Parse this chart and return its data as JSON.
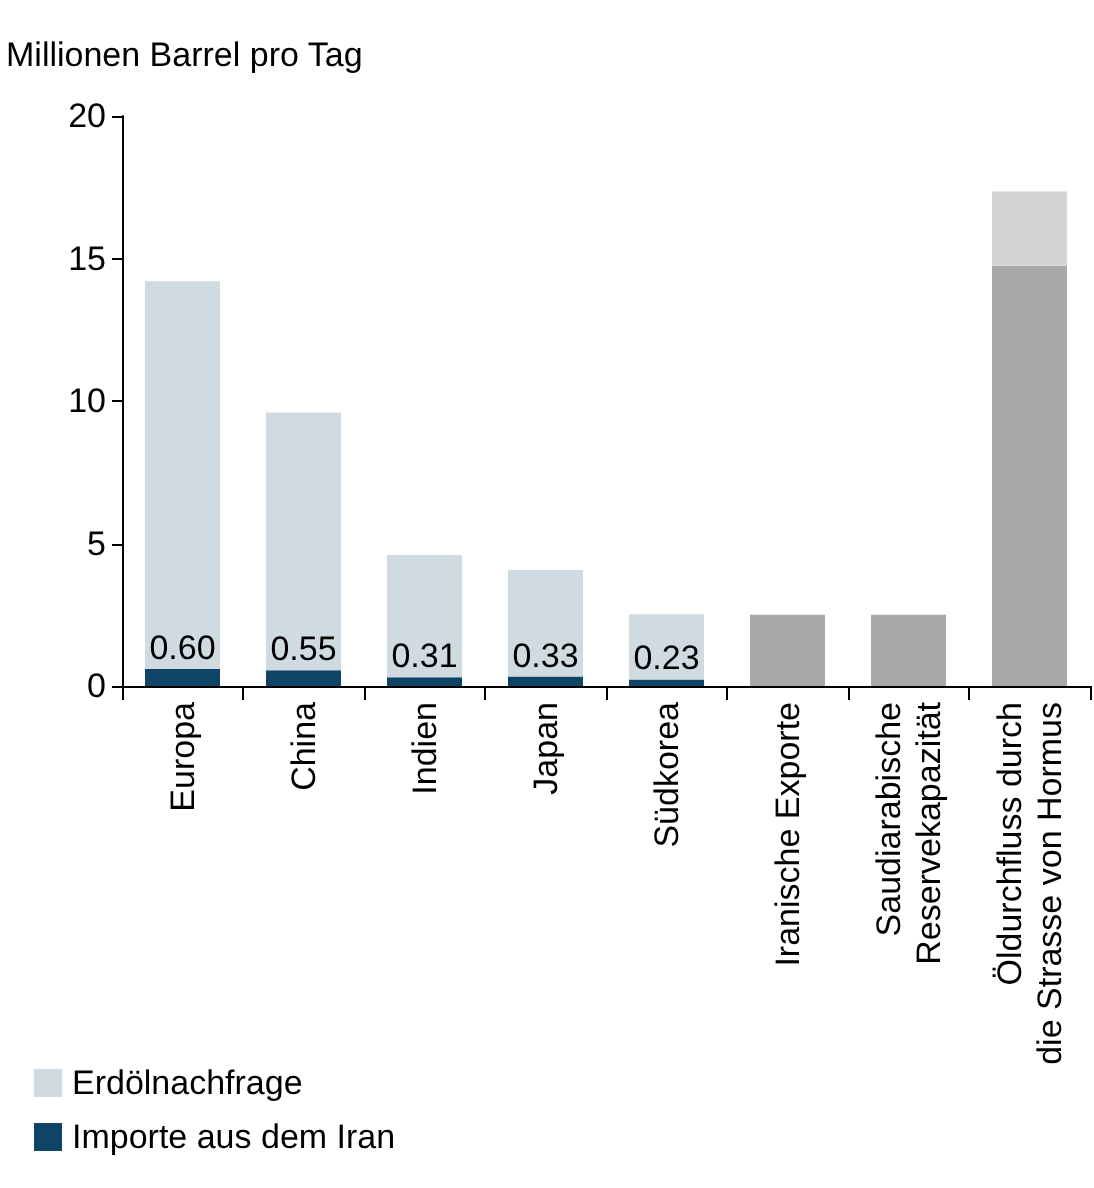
{
  "chart_data": {
    "type": "bar",
    "ylabel": "Millionen Barrel pro Tag",
    "categories": [
      "Europa",
      "China",
      "Indien",
      "Japan",
      "Südkorea",
      "Iranische Exporte",
      "Saudiarabische\nReservekapazität",
      "Öldurchfluss durch\ndie Strasse von Hormus"
    ],
    "stacked": true,
    "series": [
      {
        "name": "Importe aus dem Iran",
        "color": "#0f4466",
        "values": [
          0.6,
          0.55,
          0.31,
          0.33,
          0.23,
          null,
          null,
          null
        ],
        "value_labels": [
          "0.60",
          "0.55",
          "0.31",
          "0.33",
          "0.23",
          null,
          null,
          null
        ]
      },
      {
        "name": "Erdölnachfrage",
        "color": "#d0dbe1",
        "values": [
          13.6,
          9.05,
          4.29,
          3.74,
          2.29,
          null,
          null,
          null
        ]
      },
      {
        "color": "#a8a8a8",
        "values": [
          null,
          null,
          null,
          null,
          null,
          2.5,
          2.5,
          14.75
        ]
      },
      {
        "color": "#d4d4d4",
        "values": [
          null,
          null,
          null,
          null,
          null,
          null,
          null,
          2.6
        ]
      }
    ],
    "ylim": [
      0,
      20
    ],
    "yticks": [
      0,
      5,
      10,
      15,
      20
    ],
    "grid": false,
    "legend": "bottom left"
  }
}
